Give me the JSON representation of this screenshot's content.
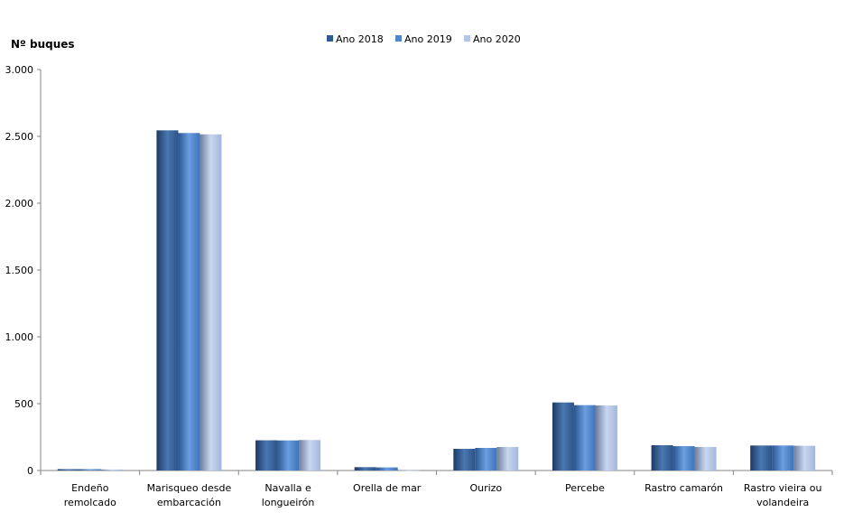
{
  "chart_data": {
    "type": "bar",
    "ylabel": "Nº  buques",
    "ylim": [
      0,
      3000
    ],
    "yticks": [
      0,
      500,
      1000,
      1500,
      2000,
      2500,
      3000
    ],
    "ytick_labels": [
      "0",
      "500",
      "1.000",
      "1.500",
      "2.000",
      "2.500",
      "3.000"
    ],
    "grid": false,
    "legend_position": "top",
    "categories": [
      [
        "Endeño",
        "remolcado"
      ],
      [
        "Marisqueo desde",
        "embarcación"
      ],
      [
        "Navalla e",
        "longueirón"
      ],
      [
        "Orella de mar"
      ],
      [
        "Ourizo"
      ],
      [
        "Percebe"
      ],
      [
        "Rastro camarón"
      ],
      [
        "Rastro vieira ou",
        "volandeira"
      ]
    ],
    "series": [
      {
        "name": "Ano 2018",
        "color": "#2f5b93",
        "values": [
          10,
          2545,
          226,
          25,
          162,
          509,
          189,
          187
        ]
      },
      {
        "name": "Ano 2019",
        "color": "#4f86cc",
        "values": [
          10,
          2525,
          225,
          23,
          169,
          489,
          182,
          187
        ]
      },
      {
        "name": "Ano 2020",
        "color": "#b4c5e6",
        "values": [
          8,
          2515,
          228,
          1,
          176,
          487,
          176,
          185
        ]
      }
    ]
  }
}
